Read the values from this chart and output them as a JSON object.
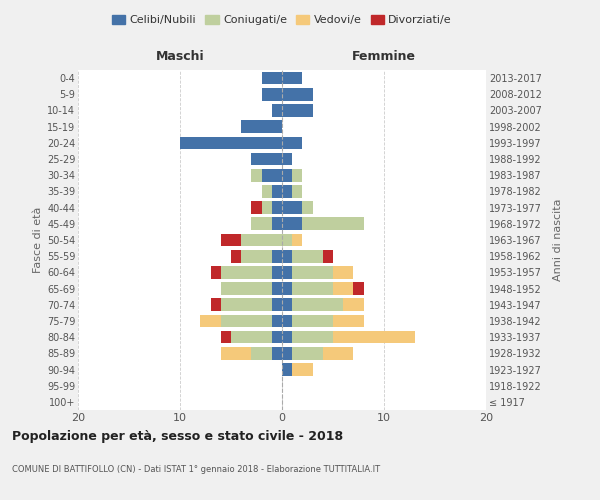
{
  "age_groups": [
    "100+",
    "95-99",
    "90-94",
    "85-89",
    "80-84",
    "75-79",
    "70-74",
    "65-69",
    "60-64",
    "55-59",
    "50-54",
    "45-49",
    "40-44",
    "35-39",
    "30-34",
    "25-29",
    "20-24",
    "15-19",
    "10-14",
    "5-9",
    "0-4"
  ],
  "birth_years": [
    "≤ 1917",
    "1918-1922",
    "1923-1927",
    "1928-1932",
    "1933-1937",
    "1938-1942",
    "1943-1947",
    "1948-1952",
    "1953-1957",
    "1958-1962",
    "1963-1967",
    "1968-1972",
    "1973-1977",
    "1978-1982",
    "1983-1987",
    "1988-1992",
    "1993-1997",
    "1998-2002",
    "2003-2007",
    "2008-2012",
    "2013-2017"
  ],
  "colors": {
    "celibi": "#4472a8",
    "coniugati": "#bfcf9e",
    "vedovi": "#f5c97a",
    "divorziati": "#c0282a"
  },
  "maschi": {
    "celibi": [
      0,
      0,
      0,
      1,
      1,
      1,
      1,
      1,
      1,
      1,
      0,
      1,
      1,
      1,
      2,
      3,
      10,
      4,
      1,
      2,
      2
    ],
    "coniugati": [
      0,
      0,
      0,
      2,
      4,
      5,
      5,
      5,
      5,
      3,
      4,
      2,
      1,
      1,
      1,
      0,
      0,
      0,
      0,
      0,
      0
    ],
    "vedovi": [
      0,
      0,
      0,
      3,
      0,
      2,
      0,
      0,
      0,
      0,
      0,
      0,
      0,
      0,
      0,
      0,
      0,
      0,
      0,
      0,
      0
    ],
    "divorziati": [
      0,
      0,
      0,
      0,
      1,
      0,
      1,
      0,
      1,
      1,
      2,
      0,
      1,
      0,
      0,
      0,
      0,
      0,
      0,
      0,
      0
    ]
  },
  "femmine": {
    "celibi": [
      0,
      0,
      1,
      1,
      1,
      1,
      1,
      1,
      1,
      1,
      0,
      2,
      2,
      1,
      1,
      1,
      2,
      0,
      3,
      3,
      2
    ],
    "coniugati": [
      0,
      0,
      0,
      3,
      4,
      4,
      5,
      4,
      4,
      3,
      1,
      6,
      1,
      1,
      1,
      0,
      0,
      0,
      0,
      0,
      0
    ],
    "vedovi": [
      0,
      0,
      2,
      3,
      8,
      3,
      2,
      2,
      2,
      0,
      1,
      0,
      0,
      0,
      0,
      0,
      0,
      0,
      0,
      0,
      0
    ],
    "divorziati": [
      0,
      0,
      0,
      0,
      0,
      0,
      0,
      1,
      0,
      1,
      0,
      0,
      0,
      0,
      0,
      0,
      0,
      0,
      0,
      0,
      0
    ]
  },
  "title": "Popolazione per età, sesso e stato civile - 2018",
  "subtitle": "COMUNE DI BATTIFOLLO (CN) - Dati ISTAT 1° gennaio 2018 - Elaborazione TUTTITALIA.IT",
  "xlabel_left": "Maschi",
  "xlabel_right": "Femmine",
  "ylabel": "Fasce di età",
  "ylabel_right": "Anni di nascita",
  "xlim": 20,
  "legend_labels": [
    "Celibi/Nubili",
    "Coniugati/e",
    "Vedovi/e",
    "Divorziati/e"
  ],
  "bg_color": "#f0f0f0",
  "plot_bg_color": "#ffffff"
}
